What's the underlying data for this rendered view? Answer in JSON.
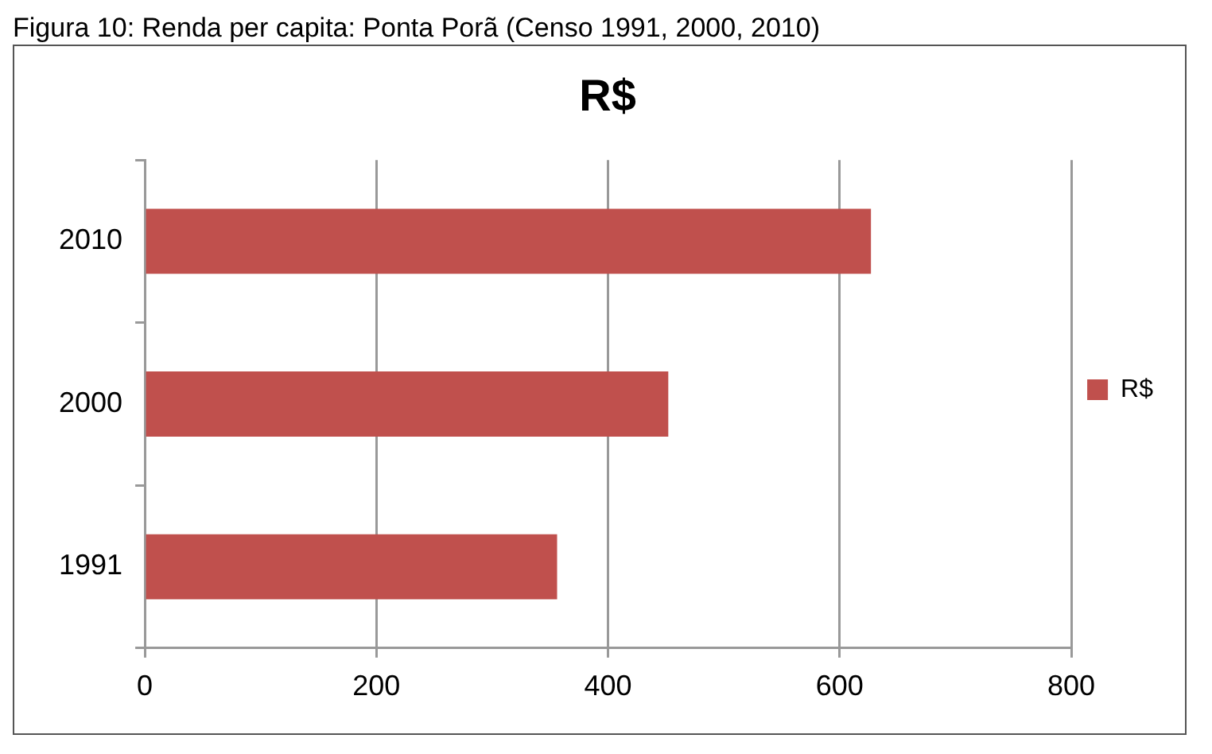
{
  "chart_data": {
    "type": "bar",
    "orientation": "horizontal",
    "title": "R$",
    "subtitle": "Figura 10: Renda per capita: Ponta Porã (Censo 1991, 2000, 2010)",
    "categories": [
      "2010",
      "2000",
      "1991"
    ],
    "series": [
      {
        "name": "R$",
        "color": "#c0504d",
        "values": [
          627,
          452,
          356
        ]
      }
    ],
    "xlim": [
      0,
      800
    ],
    "xticks": [
      0,
      200,
      400,
      600,
      800
    ],
    "grid": "x",
    "legend": "right"
  }
}
